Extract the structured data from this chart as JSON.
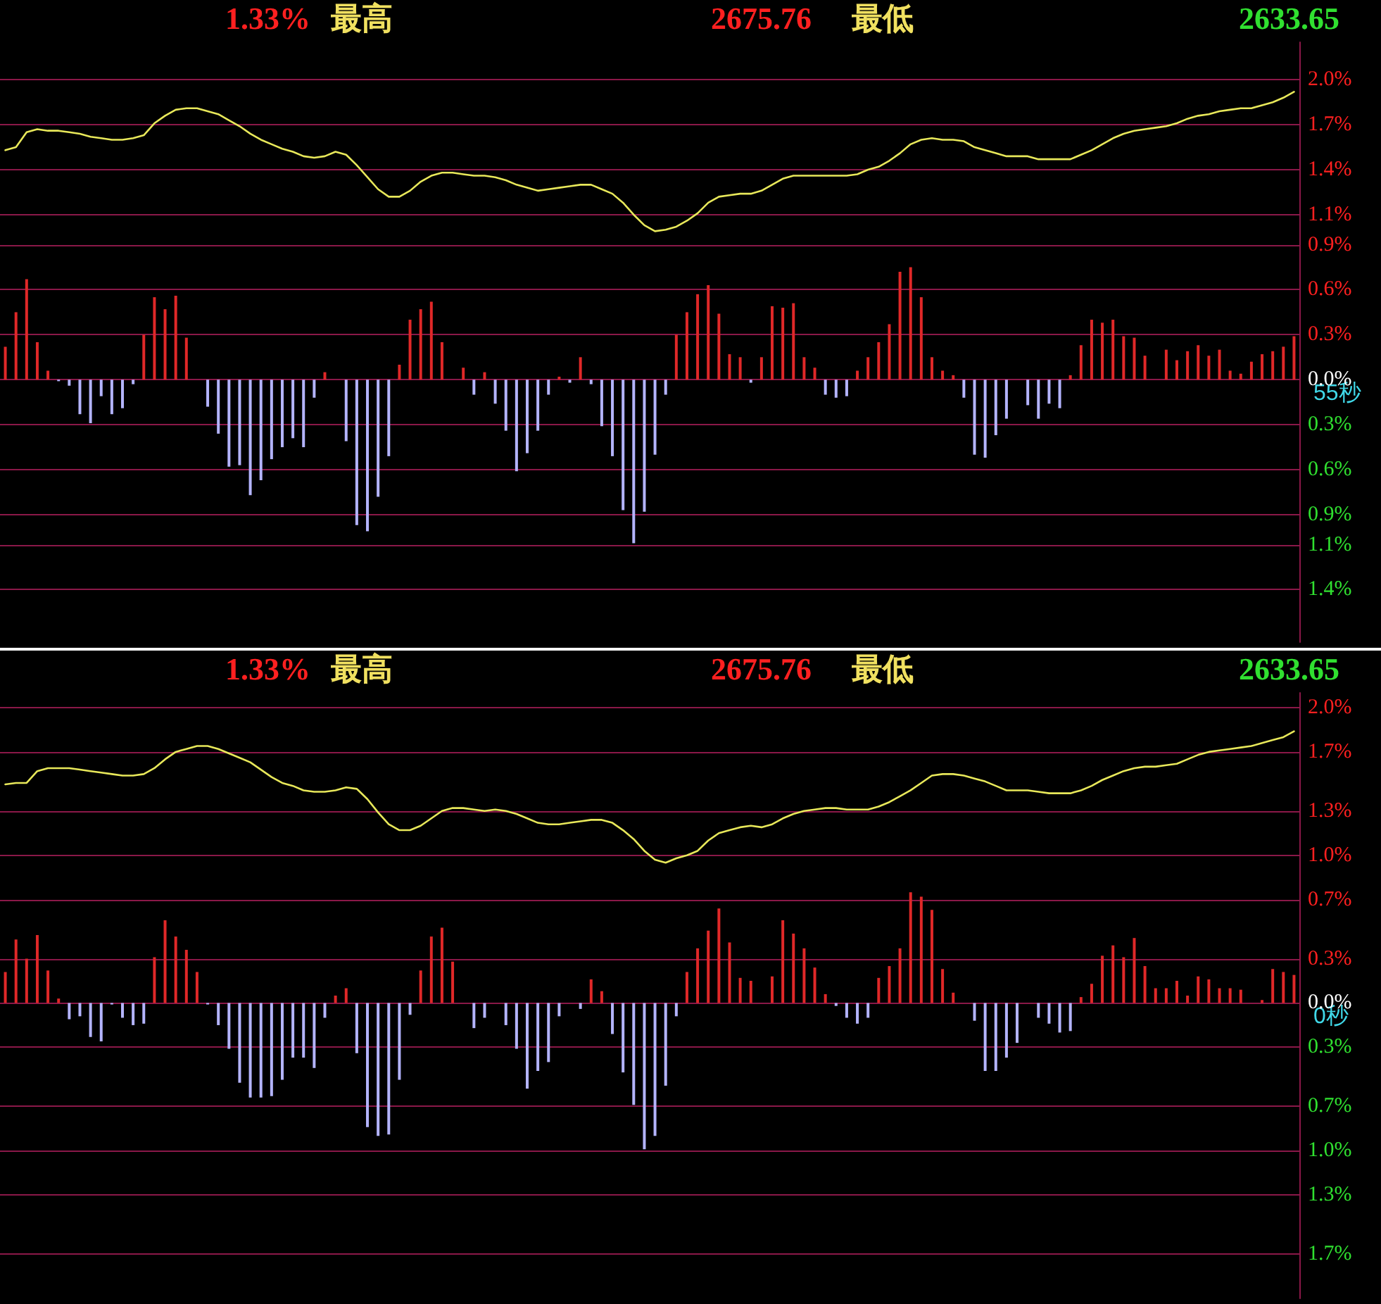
{
  "chart_data": [
    {
      "type": "bar",
      "annotations": [
        "1.33%",
        "最高",
        "2675.76",
        "最低",
        "2633.65",
        "55秒"
      ],
      "categories": [
        null,
        null,
        null,
        null,
        null,
        null,
        null,
        null,
        null,
        null,
        null,
        null,
        null,
        null,
        null,
        null,
        null,
        null,
        null,
        null,
        null,
        null,
        null,
        null,
        null,
        null,
        null,
        null,
        null,
        null,
        null,
        null,
        null,
        null,
        null,
        null,
        null,
        null,
        null,
        null,
        null,
        null,
        null,
        null,
        null,
        null,
        null,
        null,
        null,
        null,
        null,
        null,
        null,
        null,
        null,
        null,
        null,
        null,
        null,
        null,
        null,
        null,
        null,
        null,
        null,
        null,
        null,
        null,
        null,
        null,
        null,
        null,
        null,
        null,
        null,
        null,
        null,
        null,
        null,
        null,
        null,
        null,
        null,
        null,
        null,
        null,
        null,
        null,
        null,
        null,
        null,
        null,
        null,
        null,
        null,
        null,
        null,
        null,
        null,
        null,
        null,
        null,
        null,
        null,
        null,
        null,
        null,
        null,
        null,
        null,
        null,
        null,
        null,
        null,
        null,
        null,
        null,
        null,
        null,
        null,
        null,
        null
      ],
      "series": [
        {
          "type": "line",
          "color": "#e8e85a",
          "values": [
            1.53,
            1.55,
            1.65,
            1.67,
            1.66,
            1.66,
            1.65,
            1.64,
            1.62,
            1.61,
            1.6,
            1.6,
            1.61,
            1.63,
            1.71,
            1.76,
            1.8,
            1.81,
            1.81,
            1.79,
            1.77,
            1.73,
            1.69,
            1.64,
            1.6,
            1.57,
            1.54,
            1.52,
            1.49,
            1.48,
            1.49,
            1.52,
            1.5,
            1.43,
            1.35,
            1.27,
            1.22,
            1.22,
            1.26,
            1.32,
            1.36,
            1.38,
            1.38,
            1.37,
            1.36,
            1.36,
            1.35,
            1.33,
            1.3,
            1.28,
            1.26,
            1.27,
            1.28,
            1.29,
            1.3,
            1.3,
            1.27,
            1.24,
            1.18,
            1.1,
            1.03,
            0.99,
            1.0,
            1.02,
            1.06,
            1.11,
            1.18,
            1.22,
            1.23,
            1.24,
            1.24,
            1.26,
            1.3,
            1.34,
            1.36,
            1.36,
            1.36,
            1.36,
            1.36,
            1.36,
            1.37,
            1.4,
            1.42,
            1.46,
            1.51,
            1.57,
            1.6,
            1.61,
            1.6,
            1.6,
            1.59,
            1.55,
            1.53,
            1.51,
            1.49,
            1.49,
            1.49,
            1.47,
            1.47,
            1.47,
            1.47,
            1.5,
            1.53,
            1.57,
            1.61,
            1.64,
            1.66,
            1.67,
            1.68,
            1.69,
            1.71,
            1.74,
            1.76,
            1.77,
            1.79,
            1.8,
            1.81,
            1.81,
            1.83,
            1.85,
            1.88,
            1.92
          ]
        },
        {
          "values": [
            0.22,
            0.45,
            0.67,
            0.25,
            0.06,
            -0.01,
            -0.04,
            -0.23,
            -0.29,
            -0.11,
            -0.23,
            -0.19,
            -0.03,
            0.3,
            0.55,
            0.47,
            0.56,
            0.28,
            null,
            -0.18,
            -0.36,
            -0.58,
            -0.57,
            -0.77,
            -0.67,
            -0.53,
            -0.45,
            -0.39,
            -0.45,
            -0.12,
            0.05,
            null,
            -0.41,
            -0.97,
            -1.01,
            -0.78,
            -0.51,
            0.1,
            0.4,
            0.47,
            0.52,
            0.25,
            null,
            0.08,
            -0.1,
            0.05,
            -0.16,
            -0.34,
            -0.61,
            -0.49,
            -0.34,
            -0.1,
            0.02,
            -0.02,
            0.15,
            -0.03,
            -0.31,
            -0.51,
            -0.87,
            -1.09,
            -0.88,
            -0.5,
            -0.1,
            0.3,
            0.45,
            0.57,
            0.63,
            0.44,
            0.17,
            0.15,
            -0.02,
            0.15,
            0.49,
            0.48,
            0.51,
            0.15,
            0.08,
            -0.1,
            -0.12,
            -0.11,
            0.06,
            0.15,
            0.25,
            0.37,
            0.72,
            0.75,
            0.55,
            0.15,
            0.06,
            0.03,
            -0.12,
            -0.5,
            -0.52,
            -0.37,
            -0.26,
            null,
            -0.17,
            -0.26,
            -0.16,
            -0.19,
            0.03,
            0.23,
            0.4,
            0.38,
            0.4,
            0.29,
            0.28,
            0.16,
            null,
            0.2,
            0.13,
            0.19,
            0.23,
            0.16,
            0.2,
            0.06,
            0.04,
            0.12,
            0.17,
            0.19,
            0.22,
            0.29
          ],
          "colors": [
            "#e02828",
            "#e02828",
            "#e02828",
            "#e02828",
            "#e02828",
            "#b4b4ff",
            "#b4b4ff",
            "#b4b4ff",
            "#b4b4ff",
            "#b4b4ff",
            "#b4b4ff",
            "#b4b4ff",
            "#b4b4ff",
            "#e02828",
            "#e02828",
            "#e02828",
            "#e02828",
            "#e02828",
            "#e02828",
            "#b4b4ff",
            "#b4b4ff",
            "#b4b4ff",
            "#b4b4ff",
            "#b4b4ff",
            "#b4b4ff",
            "#b4b4ff",
            "#b4b4ff",
            "#b4b4ff",
            "#b4b4ff",
            "#b4b4ff",
            "#e02828",
            "#e02828",
            "#b4b4ff",
            "#b4b4ff",
            "#b4b4ff",
            "#b4b4ff",
            "#b4b4ff",
            "#e02828",
            "#e02828",
            "#e02828",
            "#e02828",
            "#e02828",
            "#e02828",
            "#e02828",
            "#b4b4ff",
            "#e02828",
            "#b4b4ff",
            "#b4b4ff",
            "#b4b4ff",
            "#b4b4ff",
            "#b4b4ff",
            "#b4b4ff",
            "#e02828",
            "#b4b4ff",
            "#e02828",
            "#b4b4ff",
            "#b4b4ff",
            "#b4b4ff",
            "#b4b4ff",
            "#b4b4ff",
            "#b4b4ff",
            "#b4b4ff",
            "#b4b4ff",
            "#e02828",
            "#e02828",
            "#e02828",
            "#e02828",
            "#e02828",
            "#e02828",
            "#e02828",
            "#b4b4ff",
            "#e02828",
            "#e02828",
            "#e02828",
            "#e02828",
            "#e02828",
            "#e02828",
            "#b4b4ff",
            "#b4b4ff",
            "#b4b4ff",
            "#e02828",
            "#e02828",
            "#e02828",
            "#e02828",
            "#e02828",
            "#e02828",
            "#e02828",
            "#e02828",
            "#e02828",
            "#e02828",
            "#b4b4ff",
            "#b4b4ff",
            "#b4b4ff",
            "#b4b4ff",
            "#b4b4ff",
            "#e02828",
            "#b4b4ff",
            "#b4b4ff",
            "#b4b4ff",
            "#b4b4ff",
            "#e02828",
            "#e02828",
            "#e02828",
            "#e02828",
            "#e02828",
            "#e02828",
            "#e02828",
            "#e02828",
            "#e02828",
            "#e02828",
            "#e02828",
            "#e02828",
            "#e02828",
            "#e02828",
            "#e02828",
            "#e02828",
            "#e02828",
            "#e02828",
            "#e02828",
            "#e02828",
            "#e02828",
            "#e02828"
          ]
        }
      ],
      "ylim": [
        -1.75,
        2.25
      ],
      "yticks": [
        {
          "value": 2.0,
          "label": "2.0%"
        },
        {
          "value": 1.7,
          "label": "1.7%"
        },
        {
          "value": 1.4,
          "label": "1.4%"
        },
        {
          "value": 1.1,
          "label": "1.1%"
        },
        {
          "value": 0.9,
          "label": "0.9%"
        },
        {
          "value": 0.6,
          "label": "0.6%"
        },
        {
          "value": 0.3,
          "label": "0.3%"
        },
        {
          "value": 0,
          "label": "0.0%"
        },
        {
          "value": -0.3,
          "label": "0.3%"
        },
        {
          "value": -0.6,
          "label": "0.6%"
        },
        {
          "value": -0.9,
          "label": "0.9%"
        },
        {
          "value": -1.1,
          "label": "1.1%"
        },
        {
          "value": -1.4,
          "label": "1.4%"
        }
      ],
      "grid": "y",
      "tick_labels": "y",
      "line_style": "solid"
    },
    {
      "type": "bar",
      "annotations": [
        "1.33%",
        "最高",
        "2675.76",
        "最低",
        "2633.65",
        "0秒"
      ],
      "categories": [
        null,
        null,
        null,
        null,
        null,
        null,
        null,
        null,
        null,
        null,
        null,
        null,
        null,
        null,
        null,
        null,
        null,
        null,
        null,
        null,
        null,
        null,
        null,
        null,
        null,
        null,
        null,
        null,
        null,
        null,
        null,
        null,
        null,
        null,
        null,
        null,
        null,
        null,
        null,
        null,
        null,
        null,
        null,
        null,
        null,
        null,
        null,
        null,
        null,
        null,
        null,
        null,
        null,
        null,
        null,
        null,
        null,
        null,
        null,
        null,
        null,
        null,
        null,
        null,
        null,
        null,
        null,
        null,
        null,
        null,
        null,
        null,
        null,
        null,
        null,
        null,
        null,
        null,
        null,
        null,
        null,
        null,
        null,
        null,
        null,
        null,
        null,
        null,
        null,
        null,
        null,
        null,
        null,
        null,
        null,
        null,
        null,
        null,
        null,
        null,
        null,
        null,
        null,
        null,
        null,
        null,
        null,
        null,
        null,
        null,
        null,
        null,
        null,
        null,
        null,
        null,
        null,
        null,
        null,
        null,
        null,
        null
      ],
      "series": [
        {
          "type": "line",
          "color": "#e8e85a",
          "values": [
            1.48,
            1.49,
            1.49,
            1.57,
            1.59,
            1.59,
            1.59,
            1.58,
            1.57,
            1.56,
            1.55,
            1.54,
            1.54,
            1.55,
            1.59,
            1.65,
            1.7,
            1.72,
            1.74,
            1.74,
            1.72,
            1.69,
            1.66,
            1.63,
            1.58,
            1.53,
            1.49,
            1.47,
            1.44,
            1.43,
            1.43,
            1.44,
            1.46,
            1.45,
            1.38,
            1.29,
            1.21,
            1.17,
            1.17,
            1.2,
            1.25,
            1.3,
            1.32,
            1.32,
            1.31,
            1.3,
            1.31,
            1.3,
            1.28,
            1.25,
            1.22,
            1.21,
            1.21,
            1.22,
            1.23,
            1.24,
            1.24,
            1.22,
            1.17,
            1.11,
            1.03,
            0.97,
            0.95,
            0.98,
            1.0,
            1.03,
            1.1,
            1.15,
            1.17,
            1.19,
            1.2,
            1.19,
            1.21,
            1.25,
            1.28,
            1.3,
            1.31,
            1.32,
            1.32,
            1.31,
            1.31,
            1.31,
            1.33,
            1.36,
            1.4,
            1.44,
            1.49,
            1.54,
            1.55,
            1.55,
            1.54,
            1.52,
            1.5,
            1.47,
            1.44,
            1.44,
            1.44,
            1.43,
            1.42,
            1.42,
            1.42,
            1.44,
            1.47,
            1.51,
            1.54,
            1.57,
            1.59,
            1.6,
            1.6,
            1.61,
            1.62,
            1.65,
            1.68,
            1.7,
            1.71,
            1.72,
            1.73,
            1.74,
            1.76,
            1.78,
            1.8,
            1.84
          ]
        },
        {
          "values": [
            0.21,
            0.43,
            0.3,
            0.46,
            0.22,
            0.03,
            -0.11,
            -0.09,
            -0.23,
            -0.26,
            -0.01,
            -0.1,
            -0.15,
            -0.14,
            0.31,
            0.56,
            0.45,
            0.36,
            0.21,
            -0.01,
            -0.15,
            -0.31,
            -0.54,
            -0.64,
            -0.64,
            -0.63,
            -0.52,
            -0.37,
            -0.37,
            -0.44,
            -0.1,
            0.05,
            0.1,
            -0.34,
            -0.84,
            -0.9,
            -0.89,
            -0.52,
            -0.08,
            0.22,
            0.45,
            0.51,
            0.28,
            null,
            -0.17,
            -0.1,
            null,
            -0.15,
            -0.31,
            -0.58,
            -0.46,
            -0.4,
            -0.09,
            null,
            -0.04,
            0.16,
            0.08,
            -0.21,
            -0.47,
            -0.69,
            -0.99,
            -0.9,
            -0.56,
            -0.09,
            0.21,
            0.37,
            0.49,
            0.64,
            0.41,
            0.17,
            0.15,
            null,
            0.18,
            0.56,
            0.47,
            0.37,
            0.24,
            0.06,
            -0.02,
            -0.1,
            -0.14,
            -0.1,
            0.17,
            0.25,
            0.37,
            0.75,
            0.72,
            0.63,
            0.23,
            0.07,
            null,
            -0.12,
            -0.46,
            -0.46,
            -0.37,
            -0.27,
            null,
            -0.1,
            -0.14,
            -0.2,
            -0.19,
            0.04,
            0.13,
            0.32,
            0.39,
            0.31,
            0.44,
            0.25,
            0.1,
            0.1,
            0.15,
            0.05,
            0.18,
            0.16,
            0.1,
            0.1,
            0.09,
            null,
            0.02,
            0.23,
            0.21,
            0.19
          ],
          "colors": [
            "#e02828",
            "#e02828",
            "#e02828",
            "#e02828",
            "#e02828",
            "#e02828",
            "#b4b4ff",
            "#b4b4ff",
            "#b4b4ff",
            "#b4b4ff",
            "#b4b4ff",
            "#b4b4ff",
            "#b4b4ff",
            "#b4b4ff",
            "#e02828",
            "#e02828",
            "#e02828",
            "#e02828",
            "#e02828",
            "#b4b4ff",
            "#b4b4ff",
            "#b4b4ff",
            "#b4b4ff",
            "#b4b4ff",
            "#b4b4ff",
            "#b4b4ff",
            "#b4b4ff",
            "#b4b4ff",
            "#b4b4ff",
            "#b4b4ff",
            "#b4b4ff",
            "#e02828",
            "#e02828",
            "#b4b4ff",
            "#b4b4ff",
            "#b4b4ff",
            "#b4b4ff",
            "#b4b4ff",
            "#b4b4ff",
            "#e02828",
            "#e02828",
            "#e02828",
            "#e02828",
            "#e02828",
            "#b4b4ff",
            "#b4b4ff",
            "#e02828",
            "#b4b4ff",
            "#b4b4ff",
            "#b4b4ff",
            "#b4b4ff",
            "#b4b4ff",
            "#b4b4ff",
            "#e02828",
            "#b4b4ff",
            "#e02828",
            "#e02828",
            "#b4b4ff",
            "#b4b4ff",
            "#b4b4ff",
            "#b4b4ff",
            "#b4b4ff",
            "#b4b4ff",
            "#b4b4ff",
            "#e02828",
            "#e02828",
            "#e02828",
            "#e02828",
            "#e02828",
            "#e02828",
            "#e02828",
            "#e02828",
            "#e02828",
            "#e02828",
            "#e02828",
            "#e02828",
            "#e02828",
            "#e02828",
            "#b4b4ff",
            "#b4b4ff",
            "#b4b4ff",
            "#b4b4ff",
            "#e02828",
            "#e02828",
            "#e02828",
            "#e02828",
            "#e02828",
            "#e02828",
            "#e02828",
            "#e02828",
            "#e02828",
            "#b4b4ff",
            "#b4b4ff",
            "#b4b4ff",
            "#b4b4ff",
            "#b4b4ff",
            "#e02828",
            "#b4b4ff",
            "#b4b4ff",
            "#b4b4ff",
            "#b4b4ff",
            "#e02828",
            "#e02828",
            "#e02828",
            "#e02828",
            "#e02828",
            "#e02828",
            "#e02828",
            "#e02828",
            "#e02828",
            "#e02828",
            "#e02828",
            "#e02828",
            "#e02828",
            "#e02828",
            "#e02828",
            "#e02828",
            "#e02828",
            "#e02828",
            "#e02828",
            "#e02828",
            "#e02828"
          ]
        }
      ],
      "ylim": [
        -2,
        2.1
      ],
      "yticks": [
        {
          "value": 2.0,
          "label": "2.0%"
        },
        {
          "value": 1.7,
          "label": "1.7%"
        },
        {
          "value": 1.3,
          "label": "1.3%"
        },
        {
          "value": 1.0,
          "label": "1.0%"
        },
        {
          "value": 0.7,
          "label": "0.7%"
        },
        {
          "value": 0.3,
          "label": "0.3%"
        },
        {
          "value": 0,
          "label": "0.0%"
        },
        {
          "value": -0.3,
          "label": "0.3%"
        },
        {
          "value": -0.7,
          "label": "0.7%"
        },
        {
          "value": -1.0,
          "label": "1.0%"
        },
        {
          "value": -1.3,
          "label": "1.3%"
        },
        {
          "value": -1.7,
          "label": "1.7%"
        }
      ],
      "grid": "y",
      "tick_labels": "y",
      "line_style": "solid"
    }
  ]
}
